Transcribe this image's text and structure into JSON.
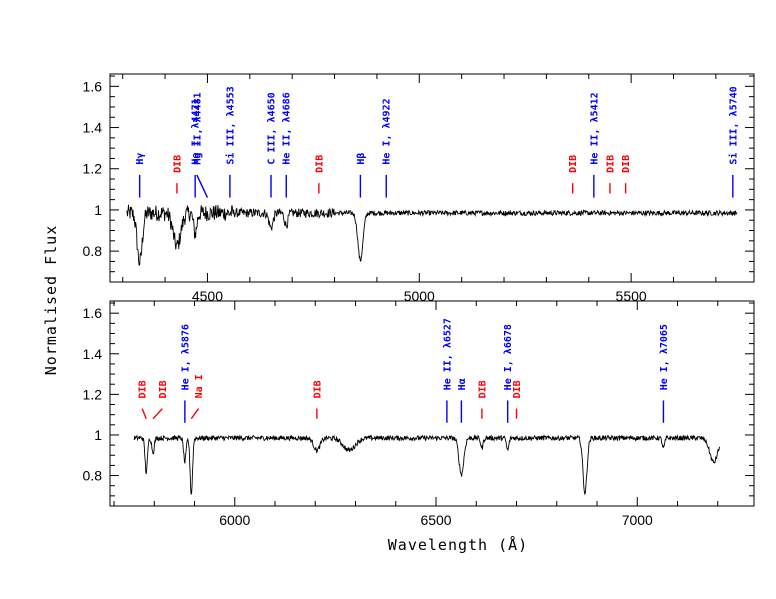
{
  "chart_data": [
    {
      "type": "line",
      "panel": "top",
      "xlim": [
        4270,
        5790
      ],
      "ylim": [
        0.65,
        1.66
      ],
      "xticks": [
        4500,
        5000,
        5500
      ],
      "yticks": [
        0.8,
        1.0,
        1.2,
        1.4,
        1.6
      ],
      "xtick_labels": [
        "4500",
        "5000",
        "5500"
      ],
      "ytick_labels": [
        "0.8",
        "1",
        "1.2",
        "1.4",
        "1.6"
      ],
      "series": [
        {
          "name": "spectrum",
          "continuum": 0.985,
          "x_range": [
            4310,
            5750
          ],
          "absorption_features": [
            {
              "center": 4340,
              "depth": 0.24,
              "width": 6
            },
            {
              "center": 4428,
              "depth": 0.16,
              "width": 9
            },
            {
              "center": 4471,
              "depth": 0.1,
              "width": 4
            },
            {
              "center": 4650,
              "depth": 0.07,
              "width": 5
            },
            {
              "center": 4686,
              "depth": 0.06,
              "width": 4
            },
            {
              "center": 4861,
              "depth": 0.23,
              "width": 6
            }
          ]
        }
      ],
      "annotations": [
        {
          "label": "Hγ",
          "x": 4340,
          "color": "blue",
          "line_y": [
            1.06,
            1.17
          ],
          "text_y": 1.22
        },
        {
          "label": "DIB",
          "x": 4428,
          "color": "red",
          "line_y": [
            1.08,
            1.13
          ],
          "text_y": 1.18
        },
        {
          "label": "He I, λ4471",
          "x": 4471,
          "color": "blue",
          "line_y": [
            1.06,
            1.17
          ],
          "text_y": 1.22
        },
        {
          "label": "Mg II, λ4481",
          "x": 4500,
          "color": "blue",
          "line_y": [
            1.06,
            1.17
          ],
          "text_y": 1.22,
          "slant_from": 4475
        },
        {
          "label": "Si III, λ4553",
          "x": 4553,
          "color": "blue",
          "line_y": [
            1.06,
            1.17
          ],
          "text_y": 1.22
        },
        {
          "label": "C III, λ4650",
          "x": 4650,
          "color": "blue",
          "line_y": [
            1.06,
            1.17
          ],
          "text_y": 1.22
        },
        {
          "label": "He II, λ4686",
          "x": 4686,
          "color": "blue",
          "line_y": [
            1.06,
            1.17
          ],
          "text_y": 1.22
        },
        {
          "label": "DIB",
          "x": 4763,
          "color": "red",
          "line_y": [
            1.08,
            1.13
          ],
          "text_y": 1.18
        },
        {
          "label": "Hβ",
          "x": 4861,
          "color": "blue",
          "line_y": [
            1.06,
            1.17
          ],
          "text_y": 1.22
        },
        {
          "label": "He I, λ4922",
          "x": 4922,
          "color": "blue",
          "line_y": [
            1.06,
            1.17
          ],
          "text_y": 1.22
        },
        {
          "label": "DIB",
          "x": 5362,
          "color": "red",
          "line_y": [
            1.08,
            1.13
          ],
          "text_y": 1.18
        },
        {
          "label": "He II, λ5412",
          "x": 5412,
          "color": "blue",
          "line_y": [
            1.06,
            1.17
          ],
          "text_y": 1.22
        },
        {
          "label": "DIB",
          "x": 5450,
          "color": "red",
          "line_y": [
            1.08,
            1.13
          ],
          "text_y": 1.18
        },
        {
          "label": "DIB",
          "x": 5487,
          "color": "red",
          "line_y": [
            1.08,
            1.13
          ],
          "text_y": 1.18
        },
        {
          "label": "Si III, λ5740",
          "x": 5740,
          "color": "blue",
          "line_y": [
            1.06,
            1.17
          ],
          "text_y": 1.22
        }
      ]
    },
    {
      "type": "line",
      "panel": "bottom",
      "xlim": [
        5690,
        7290
      ],
      "ylim": [
        0.65,
        1.66
      ],
      "xticks": [
        6000,
        6500,
        7000
      ],
      "yticks": [
        0.8,
        1.0,
        1.2,
        1.4,
        1.6
      ],
      "xtick_labels": [
        "6000",
        "6500",
        "7000"
      ],
      "ytick_labels": [
        "0.8",
        "1",
        "1.2",
        "1.4",
        "1.6"
      ],
      "series": [
        {
          "name": "spectrum",
          "continuum": 0.985,
          "x_range": [
            5750,
            7205
          ],
          "absorption_features": [
            {
              "center": 5780,
              "depth": 0.17,
              "width": 3
            },
            {
              "center": 5797,
              "depth": 0.07,
              "width": 3
            },
            {
              "center": 5876,
              "depth": 0.12,
              "width": 3
            },
            {
              "center": 5892,
              "depth": 0.28,
              "width": 3
            },
            {
              "center": 6204,
              "depth": 0.06,
              "width": 8
            },
            {
              "center": 6284,
              "depth": 0.06,
              "width": 15
            },
            {
              "center": 6563,
              "depth": 0.18,
              "width": 6
            },
            {
              "center": 6614,
              "depth": 0.05,
              "width": 3
            },
            {
              "center": 6678,
              "depth": 0.06,
              "width": 3
            },
            {
              "center": 6870,
              "depth": 0.27,
              "width": 5
            },
            {
              "center": 7065,
              "depth": 0.05,
              "width": 3
            },
            {
              "center": 7190,
              "depth": 0.12,
              "width": 10
            }
          ]
        }
      ],
      "annotations": [
        {
          "label": "DIB",
          "x": 5780,
          "color": "red",
          "line_y": [
            1.08,
            1.13
          ],
          "text_y": 1.18,
          "slant_from": 5770
        },
        {
          "label": "DIB",
          "x": 5797,
          "color": "red",
          "line_y": [
            1.08,
            1.13
          ],
          "text_y": 1.18,
          "slant_from": 5820
        },
        {
          "label": "He I, λ5876",
          "x": 5876,
          "color": "blue",
          "line_y": [
            1.06,
            1.17
          ],
          "text_y": 1.22
        },
        {
          "label": "Na I",
          "x": 5892,
          "color": "red",
          "line_y": [
            1.08,
            1.13
          ],
          "text_y": 1.18,
          "slant_from": 5910
        },
        {
          "label": "DIB",
          "x": 6204,
          "color": "red",
          "line_y": [
            1.08,
            1.13
          ],
          "text_y": 1.18
        },
        {
          "label": "He II, λ6527",
          "x": 6527,
          "color": "blue",
          "line_y": [
            1.06,
            1.17
          ],
          "text_y": 1.22
        },
        {
          "label": "Hα",
          "x": 6563,
          "color": "blue",
          "line_y": [
            1.06,
            1.17
          ],
          "text_y": 1.22
        },
        {
          "label": "DIB",
          "x": 6614,
          "color": "red",
          "line_y": [
            1.08,
            1.13
          ],
          "text_y": 1.18
        },
        {
          "label": "He I, λ6678",
          "x": 6678,
          "color": "blue",
          "line_y": [
            1.06,
            1.17
          ],
          "text_y": 1.22
        },
        {
          "label": "DIB",
          "x": 6700,
          "color": "red",
          "line_y": [
            1.08,
            1.13
          ],
          "text_y": 1.18
        },
        {
          "label": "He I, λ7065",
          "x": 7065,
          "color": "blue",
          "line_y": [
            1.06,
            1.17
          ],
          "text_y": 1.22
        }
      ]
    }
  ],
  "xlabel": "Wavelength (Å)",
  "ylabel": "Normalised Flux",
  "colors": {
    "blue": "#0000ff",
    "red": "#ff0000",
    "line": "#000000"
  }
}
